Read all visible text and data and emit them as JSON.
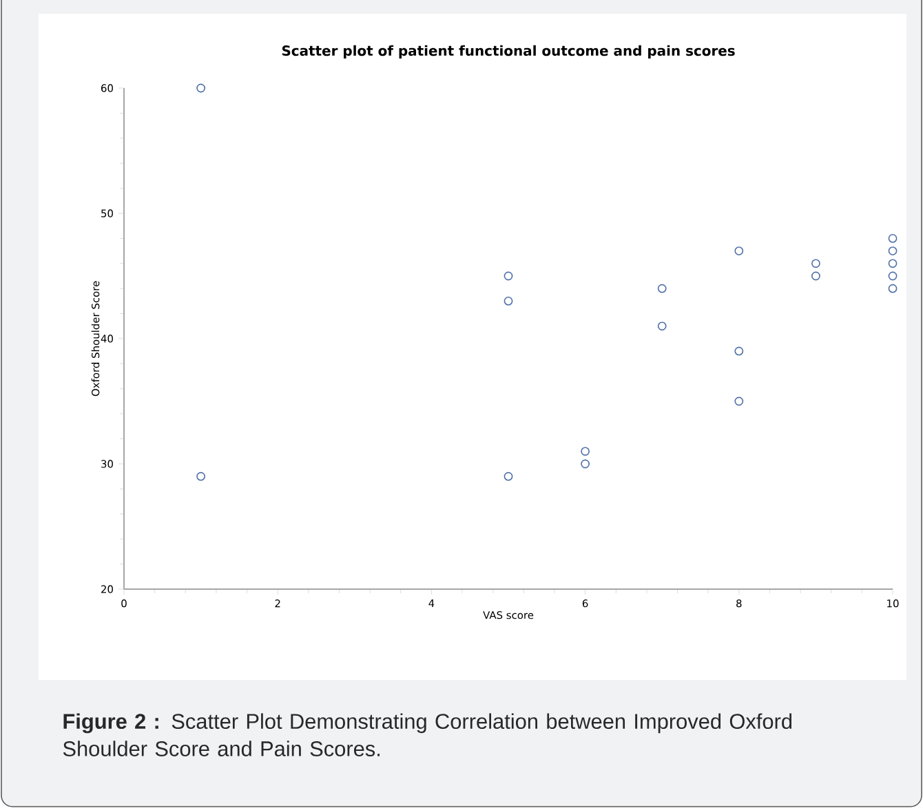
{
  "chart_data": {
    "type": "scatter",
    "title": "Scatter plot of patient functional outcome and pain scores",
    "xlabel": "VAS score",
    "ylabel": "Oxford Shoulder Score",
    "x": [
      1,
      1,
      5,
      5,
      5,
      6,
      6,
      7,
      7,
      8,
      8,
      8,
      9,
      9,
      10,
      10,
      10,
      10,
      10
    ],
    "values": [
      60,
      29,
      45,
      43,
      29,
      31,
      30,
      44,
      41,
      47,
      39,
      35,
      46,
      45,
      48,
      47,
      46,
      45,
      44
    ],
    "color": "#4f6fa8",
    "marker": "circle",
    "xlim": [
      0,
      10
    ],
    "xticks": [
      0,
      2,
      4,
      6,
      8,
      10
    ],
    "ylim": [
      20,
      60
    ],
    "yticks": [
      20,
      30,
      40,
      50,
      60
    ],
    "annotations": [
      "**Figure 2 :** Scatter Plot Demonstrating Correlation between Improved Oxford Shoulder Score and Pain Scores."
    ]
  }
}
